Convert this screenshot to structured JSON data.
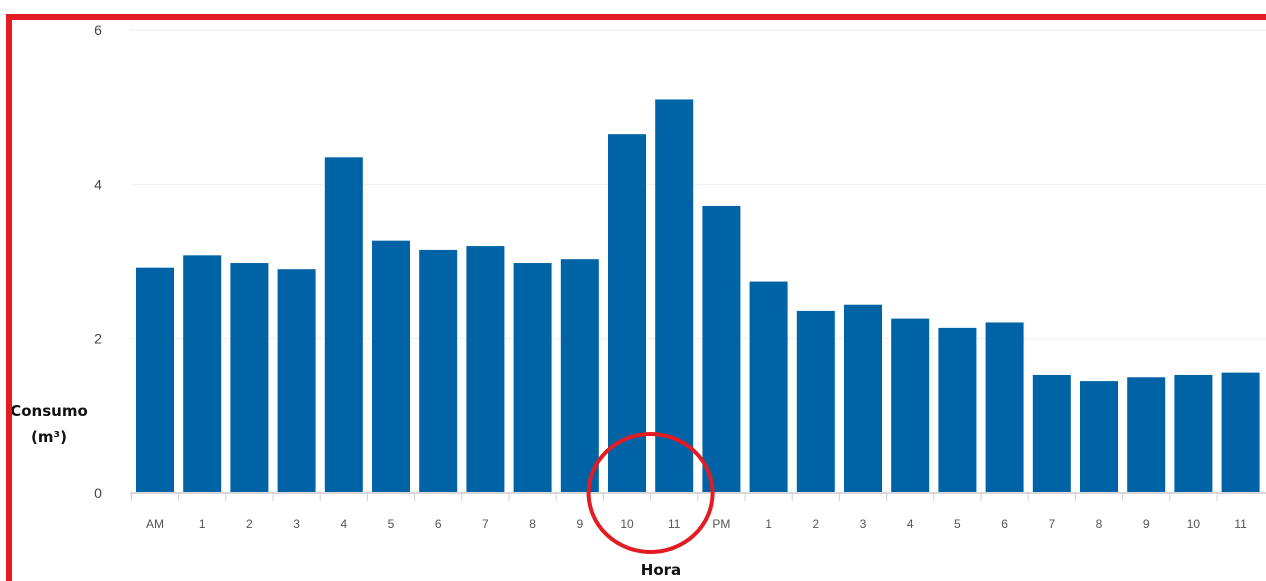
{
  "chart_data": {
    "type": "bar",
    "xlabel": "Hora",
    "ylabel_line1": "Consumo",
    "ylabel_line2": "(m³)",
    "ylim": [
      0,
      6
    ],
    "yticks": [
      "0",
      "2",
      "4",
      "6"
    ],
    "grid": true,
    "categories": [
      "AM",
      "1",
      "2",
      "3",
      "4",
      "5",
      "6",
      "7",
      "8",
      "9",
      "10",
      "11",
      "PM",
      "1",
      "2",
      "3",
      "4",
      "5",
      "6",
      "7",
      "8",
      "9",
      "10",
      "11"
    ],
    "values": [
      2.92,
      3.08,
      2.98,
      2.9,
      4.35,
      3.27,
      3.15,
      3.2,
      2.98,
      3.03,
      4.65,
      5.1,
      3.72,
      2.74,
      2.36,
      2.44,
      2.26,
      2.14,
      2.21,
      1.53,
      1.45,
      1.5,
      1.53,
      1.56
    ],
    "bar_color": "#0063a6",
    "highlight_categories": [
      10,
      11
    ],
    "highlight_color": "#e31c23",
    "frame_color": "#e31c23"
  }
}
